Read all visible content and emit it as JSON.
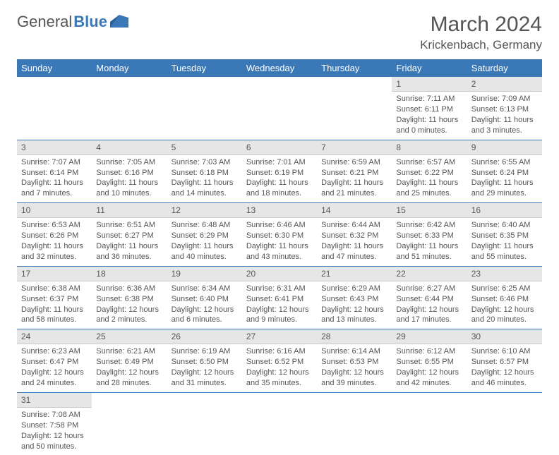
{
  "logo": {
    "part1": "General",
    "part2": "Blue"
  },
  "title": "March 2024",
  "location": "Krickenbach, Germany",
  "colors": {
    "brand": "#3b78b8",
    "daynum_bg": "#e6e6e6",
    "text": "#555555",
    "bg": "#ffffff"
  },
  "weekdays": [
    "Sunday",
    "Monday",
    "Tuesday",
    "Wednesday",
    "Thursday",
    "Friday",
    "Saturday"
  ],
  "weeks": [
    [
      null,
      null,
      null,
      null,
      null,
      {
        "n": "1",
        "sr": "Sunrise: 7:11 AM",
        "ss": "Sunset: 6:11 PM",
        "dl": "Daylight: 11 hours and 0 minutes."
      },
      {
        "n": "2",
        "sr": "Sunrise: 7:09 AM",
        "ss": "Sunset: 6:13 PM",
        "dl": "Daylight: 11 hours and 3 minutes."
      }
    ],
    [
      {
        "n": "3",
        "sr": "Sunrise: 7:07 AM",
        "ss": "Sunset: 6:14 PM",
        "dl": "Daylight: 11 hours and 7 minutes."
      },
      {
        "n": "4",
        "sr": "Sunrise: 7:05 AM",
        "ss": "Sunset: 6:16 PM",
        "dl": "Daylight: 11 hours and 10 minutes."
      },
      {
        "n": "5",
        "sr": "Sunrise: 7:03 AM",
        "ss": "Sunset: 6:18 PM",
        "dl": "Daylight: 11 hours and 14 minutes."
      },
      {
        "n": "6",
        "sr": "Sunrise: 7:01 AM",
        "ss": "Sunset: 6:19 PM",
        "dl": "Daylight: 11 hours and 18 minutes."
      },
      {
        "n": "7",
        "sr": "Sunrise: 6:59 AM",
        "ss": "Sunset: 6:21 PM",
        "dl": "Daylight: 11 hours and 21 minutes."
      },
      {
        "n": "8",
        "sr": "Sunrise: 6:57 AM",
        "ss": "Sunset: 6:22 PM",
        "dl": "Daylight: 11 hours and 25 minutes."
      },
      {
        "n": "9",
        "sr": "Sunrise: 6:55 AM",
        "ss": "Sunset: 6:24 PM",
        "dl": "Daylight: 11 hours and 29 minutes."
      }
    ],
    [
      {
        "n": "10",
        "sr": "Sunrise: 6:53 AM",
        "ss": "Sunset: 6:26 PM",
        "dl": "Daylight: 11 hours and 32 minutes."
      },
      {
        "n": "11",
        "sr": "Sunrise: 6:51 AM",
        "ss": "Sunset: 6:27 PM",
        "dl": "Daylight: 11 hours and 36 minutes."
      },
      {
        "n": "12",
        "sr": "Sunrise: 6:48 AM",
        "ss": "Sunset: 6:29 PM",
        "dl": "Daylight: 11 hours and 40 minutes."
      },
      {
        "n": "13",
        "sr": "Sunrise: 6:46 AM",
        "ss": "Sunset: 6:30 PM",
        "dl": "Daylight: 11 hours and 43 minutes."
      },
      {
        "n": "14",
        "sr": "Sunrise: 6:44 AM",
        "ss": "Sunset: 6:32 PM",
        "dl": "Daylight: 11 hours and 47 minutes."
      },
      {
        "n": "15",
        "sr": "Sunrise: 6:42 AM",
        "ss": "Sunset: 6:33 PM",
        "dl": "Daylight: 11 hours and 51 minutes."
      },
      {
        "n": "16",
        "sr": "Sunrise: 6:40 AM",
        "ss": "Sunset: 6:35 PM",
        "dl": "Daylight: 11 hours and 55 minutes."
      }
    ],
    [
      {
        "n": "17",
        "sr": "Sunrise: 6:38 AM",
        "ss": "Sunset: 6:37 PM",
        "dl": "Daylight: 11 hours and 58 minutes."
      },
      {
        "n": "18",
        "sr": "Sunrise: 6:36 AM",
        "ss": "Sunset: 6:38 PM",
        "dl": "Daylight: 12 hours and 2 minutes."
      },
      {
        "n": "19",
        "sr": "Sunrise: 6:34 AM",
        "ss": "Sunset: 6:40 PM",
        "dl": "Daylight: 12 hours and 6 minutes."
      },
      {
        "n": "20",
        "sr": "Sunrise: 6:31 AM",
        "ss": "Sunset: 6:41 PM",
        "dl": "Daylight: 12 hours and 9 minutes."
      },
      {
        "n": "21",
        "sr": "Sunrise: 6:29 AM",
        "ss": "Sunset: 6:43 PM",
        "dl": "Daylight: 12 hours and 13 minutes."
      },
      {
        "n": "22",
        "sr": "Sunrise: 6:27 AM",
        "ss": "Sunset: 6:44 PM",
        "dl": "Daylight: 12 hours and 17 minutes."
      },
      {
        "n": "23",
        "sr": "Sunrise: 6:25 AM",
        "ss": "Sunset: 6:46 PM",
        "dl": "Daylight: 12 hours and 20 minutes."
      }
    ],
    [
      {
        "n": "24",
        "sr": "Sunrise: 6:23 AM",
        "ss": "Sunset: 6:47 PM",
        "dl": "Daylight: 12 hours and 24 minutes."
      },
      {
        "n": "25",
        "sr": "Sunrise: 6:21 AM",
        "ss": "Sunset: 6:49 PM",
        "dl": "Daylight: 12 hours and 28 minutes."
      },
      {
        "n": "26",
        "sr": "Sunrise: 6:19 AM",
        "ss": "Sunset: 6:50 PM",
        "dl": "Daylight: 12 hours and 31 minutes."
      },
      {
        "n": "27",
        "sr": "Sunrise: 6:16 AM",
        "ss": "Sunset: 6:52 PM",
        "dl": "Daylight: 12 hours and 35 minutes."
      },
      {
        "n": "28",
        "sr": "Sunrise: 6:14 AM",
        "ss": "Sunset: 6:53 PM",
        "dl": "Daylight: 12 hours and 39 minutes."
      },
      {
        "n": "29",
        "sr": "Sunrise: 6:12 AM",
        "ss": "Sunset: 6:55 PM",
        "dl": "Daylight: 12 hours and 42 minutes."
      },
      {
        "n": "30",
        "sr": "Sunrise: 6:10 AM",
        "ss": "Sunset: 6:57 PM",
        "dl": "Daylight: 12 hours and 46 minutes."
      }
    ],
    [
      {
        "n": "31",
        "sr": "Sunrise: 7:08 AM",
        "ss": "Sunset: 7:58 PM",
        "dl": "Daylight: 12 hours and 50 minutes."
      },
      null,
      null,
      null,
      null,
      null,
      null
    ]
  ]
}
